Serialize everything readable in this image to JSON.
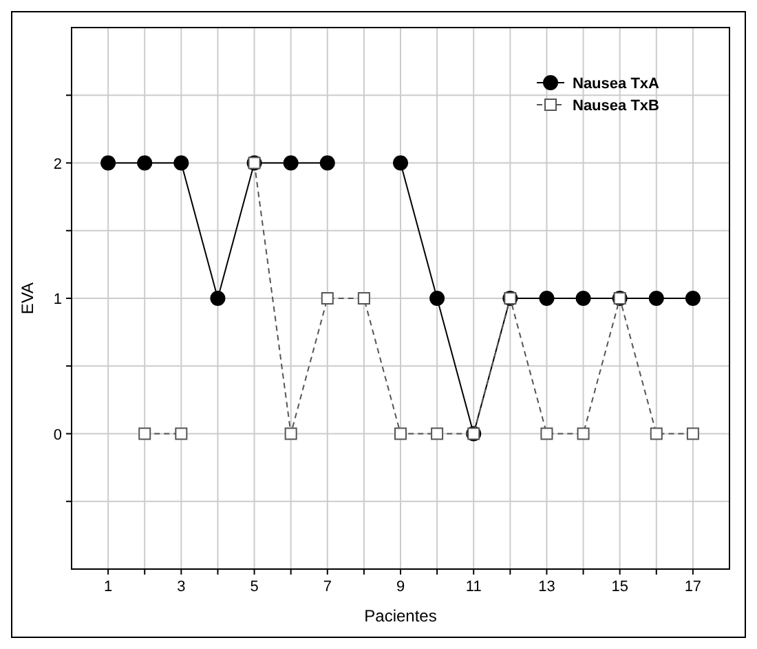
{
  "chart_data": {
    "type": "line",
    "xlabel": "Pacientes",
    "ylabel": "EVA",
    "x": [
      1,
      2,
      3,
      4,
      5,
      6,
      7,
      8,
      9,
      10,
      11,
      12,
      13,
      14,
      15,
      16,
      17
    ],
    "series": [
      {
        "name": "Nausea TxA",
        "color": "#000000",
        "marker": "circle",
        "line_style": "solid",
        "values": [
          2,
          2,
          2,
          1,
          2,
          2,
          2,
          null,
          2,
          1,
          0,
          1,
          1,
          1,
          1,
          1,
          1
        ]
      },
      {
        "name": "Nausea TxB",
        "color": "#555555",
        "marker": "square",
        "line_style": "dashed",
        "values": [
          null,
          0,
          0,
          null,
          2,
          0,
          1,
          1,
          0,
          0,
          0,
          1,
          0,
          0,
          1,
          0,
          0
        ]
      }
    ],
    "xlim": [
      0,
      18
    ],
    "xticks": [
      1,
      {
        "value": 2,
        "label": null
      },
      3,
      {
        "value": 4,
        "label": null
      },
      5,
      {
        "value": 6,
        "label": null
      },
      7,
      {
        "value": 8,
        "label": null
      },
      9,
      {
        "value": 10,
        "label": null
      },
      11,
      {
        "value": 12,
        "label": null
      },
      13,
      {
        "value": 14,
        "label": null
      },
      15,
      {
        "value": 16,
        "label": null
      },
      17
    ],
    "ylim": [
      -1,
      3
    ],
    "yticks": [
      {
        "value": -0.5,
        "label": null
      },
      0,
      {
        "value": 0.5,
        "label": null
      },
      1,
      {
        "value": 1.5,
        "label": null
      },
      2,
      {
        "value": 2.5,
        "label": null
      }
    ],
    "grid": true,
    "legend": "top right"
  }
}
